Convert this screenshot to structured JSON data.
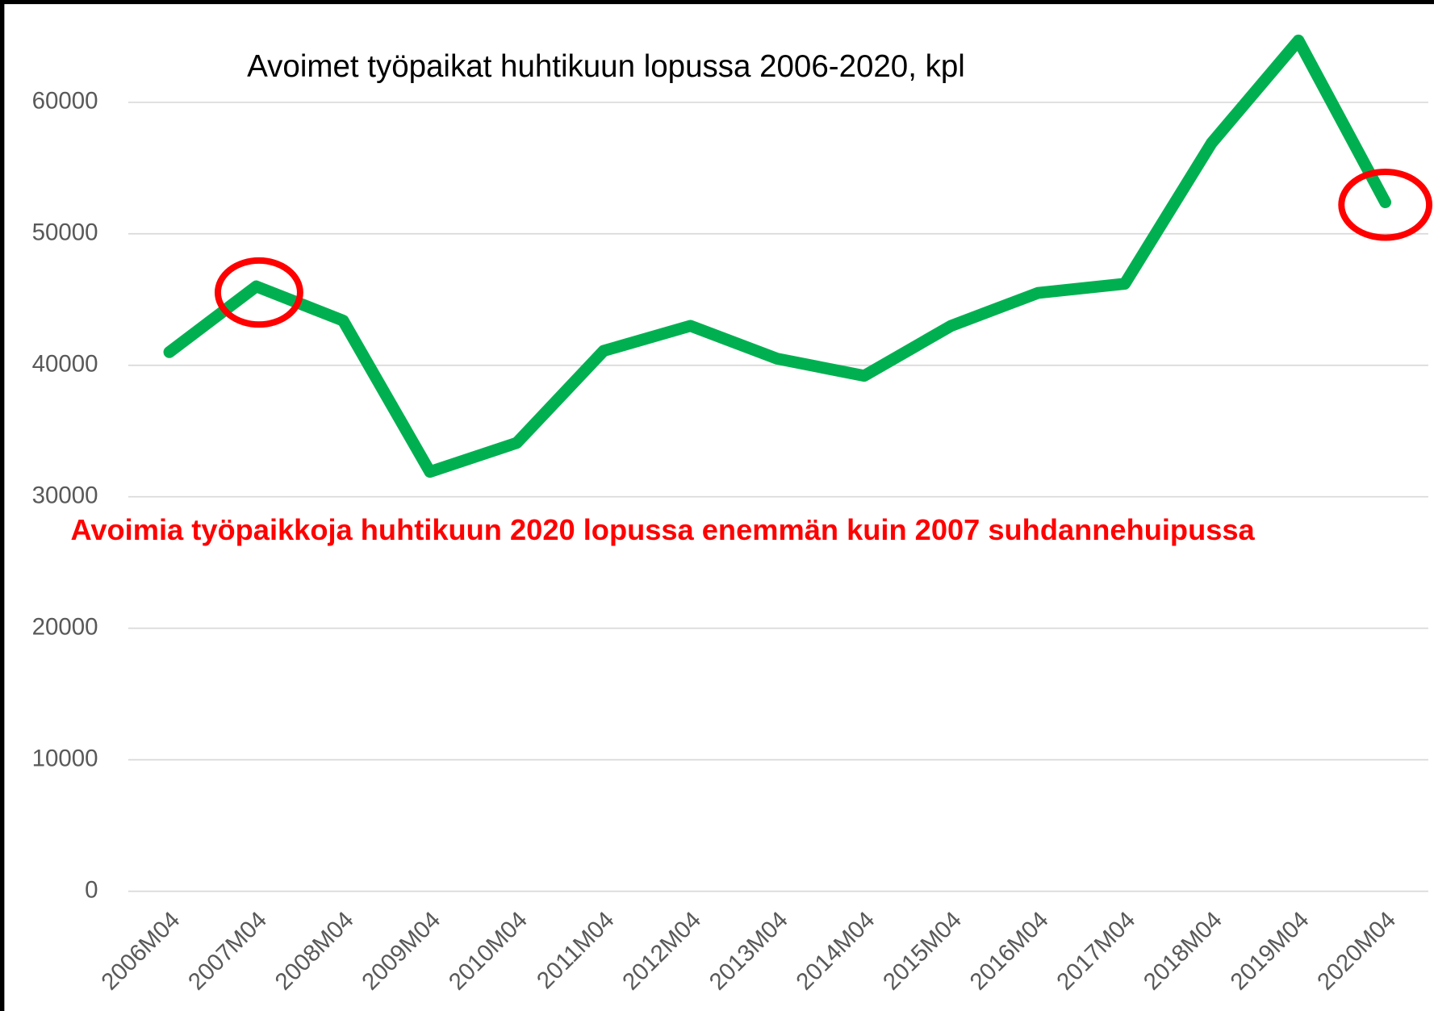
{
  "chart_data": {
    "type": "line",
    "title": "Avoimet työpaikat huhtikuun lopussa 2006-2020, kpl",
    "annotation": "Avoimia työpaikkoja huhtikuun 2020 lopussa enemmän kuin 2007 suhdannehuipussa",
    "categories": [
      "2006M04",
      "2007M04",
      "2008M04",
      "2009M04",
      "2010M04",
      "2011M04",
      "2012M04",
      "2013M04",
      "2014M04",
      "2015M04",
      "2016M04",
      "2017M04",
      "2018M04",
      "2019M04",
      "2020M04"
    ],
    "values": [
      41000,
      46000,
      43400,
      31900,
      34100,
      41100,
      43000,
      40500,
      39200,
      43000,
      45500,
      46200,
      56900,
      64700,
      52400
    ],
    "color": "#00b050",
    "ylim": [
      0,
      65000
    ],
    "yticks": [
      0,
      10000,
      20000,
      30000,
      40000,
      50000,
      60000
    ],
    "grid": true
  }
}
